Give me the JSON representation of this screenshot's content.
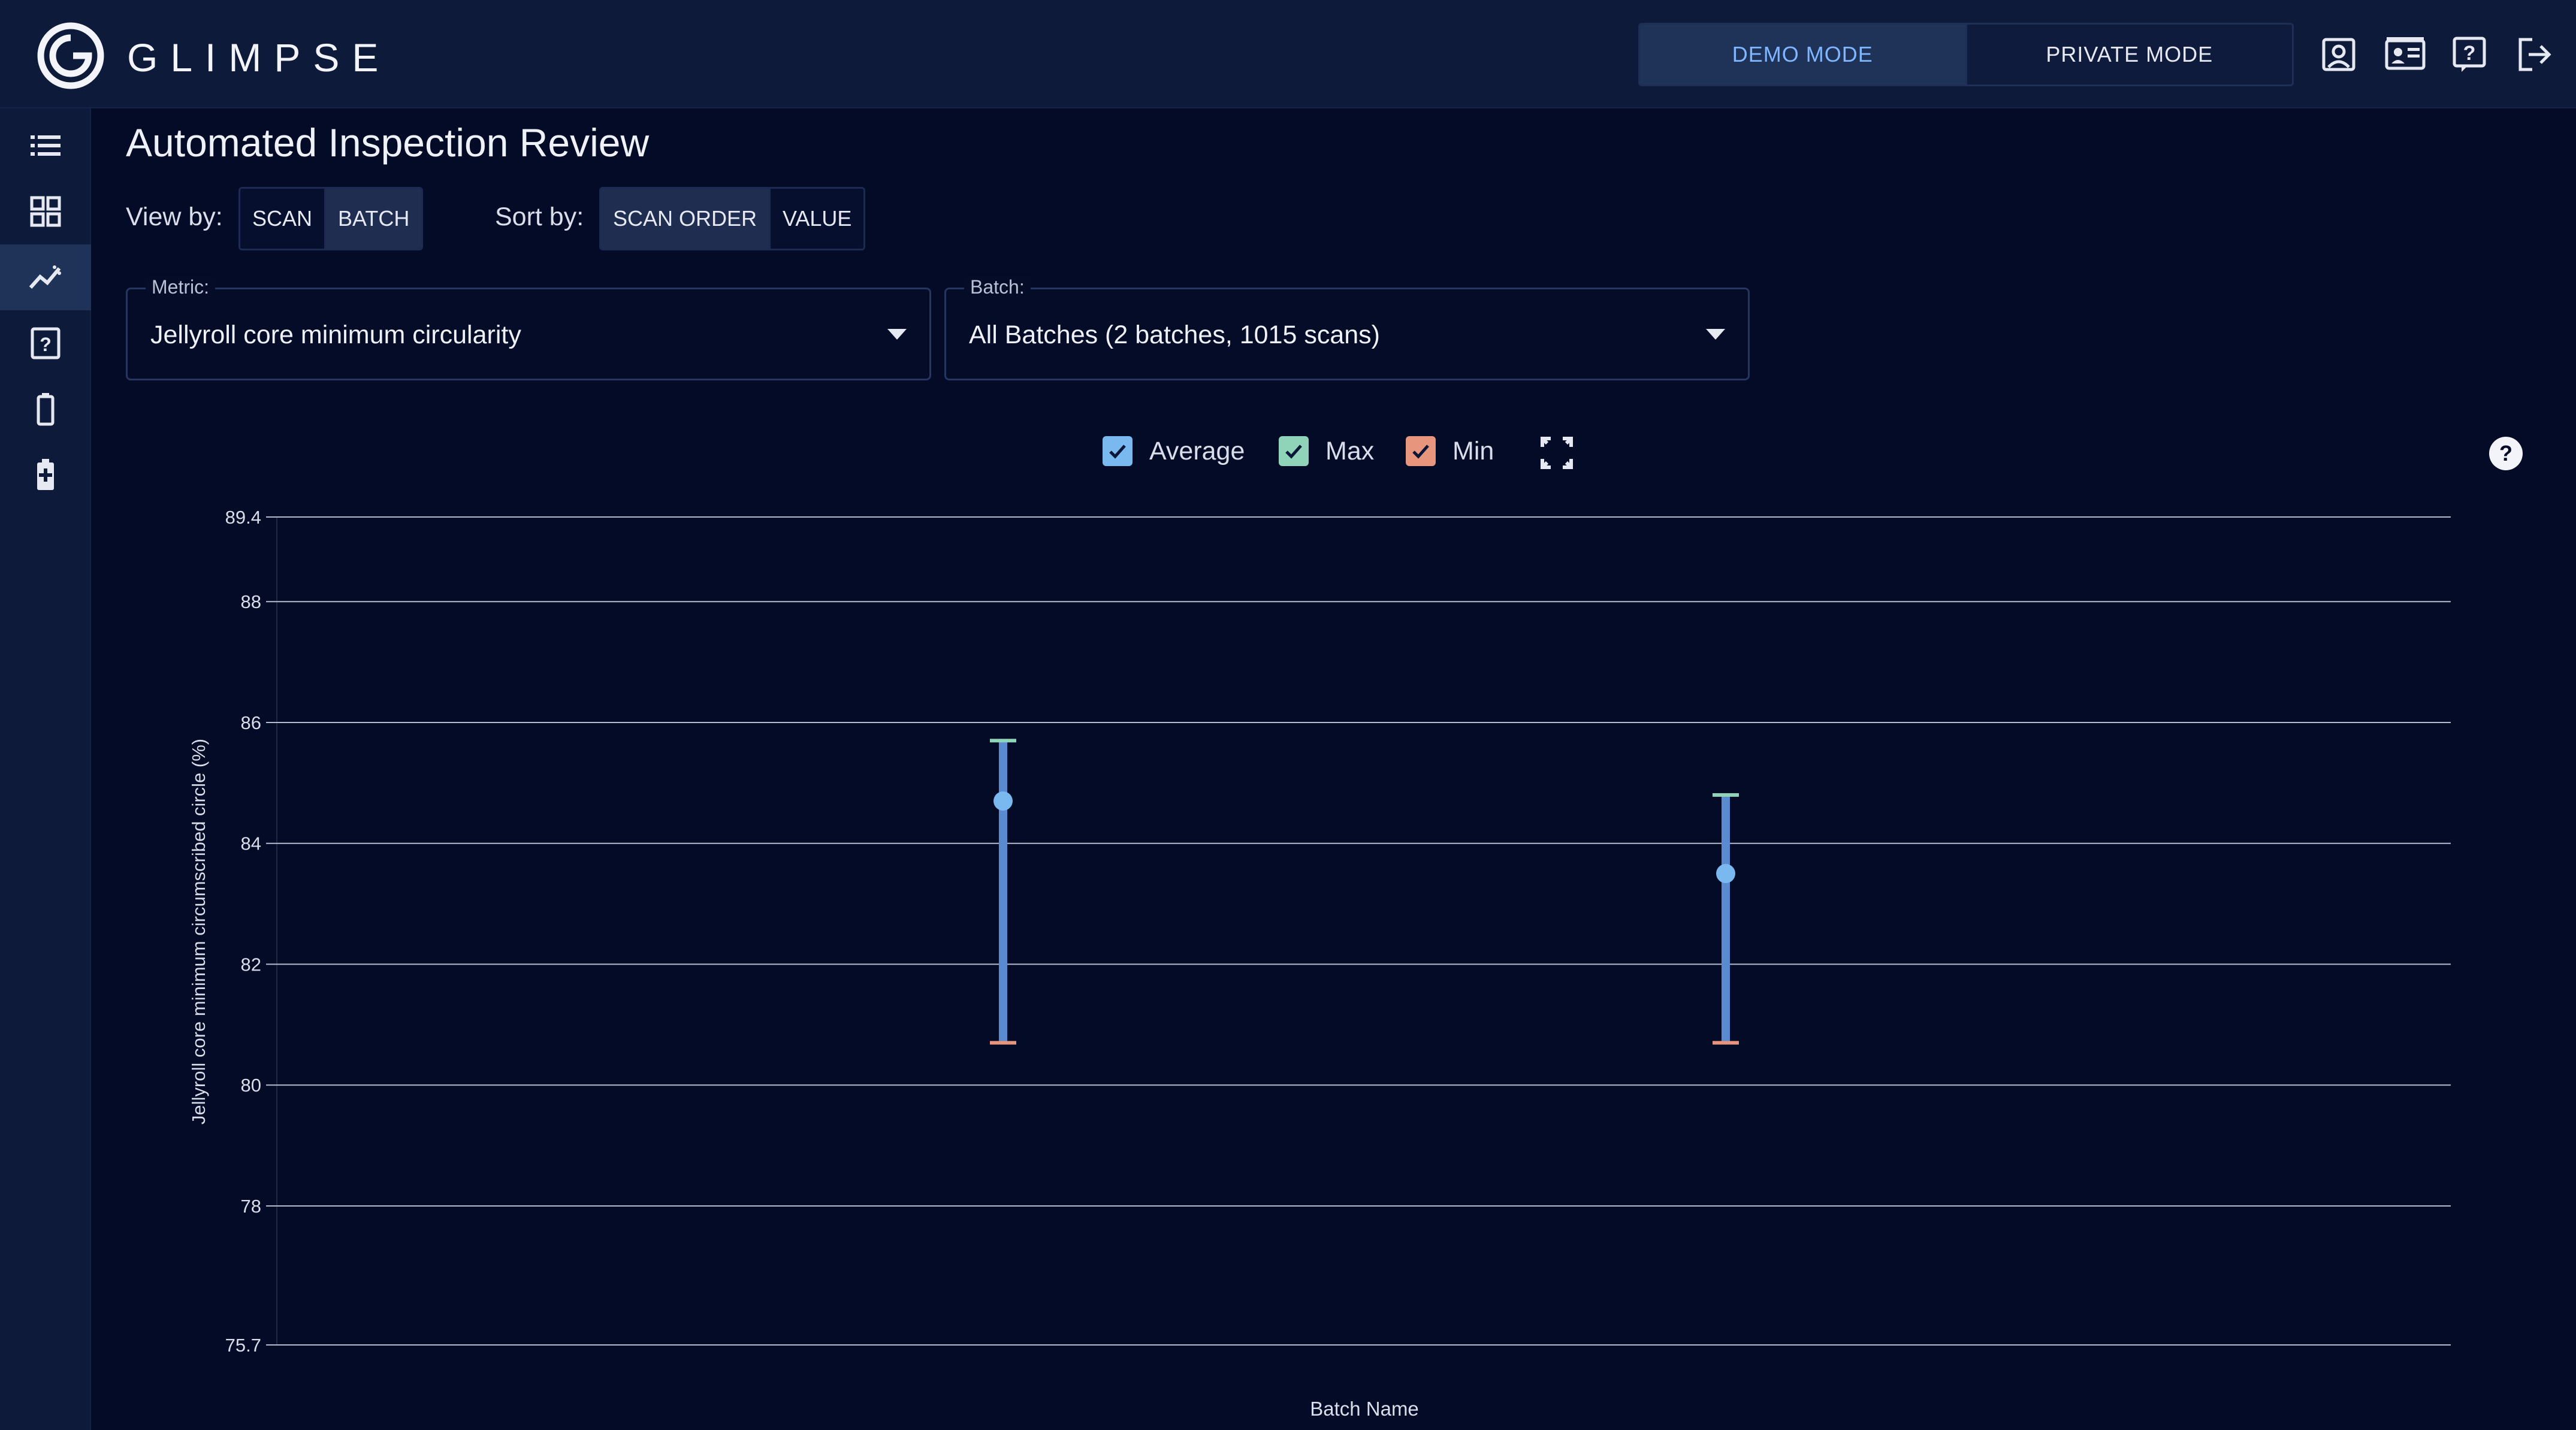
{
  "app": {
    "brand": "GLIMPSE",
    "modes": [
      {
        "label": "DEMO MODE",
        "active": true
      },
      {
        "label": "PRIVATE MODE",
        "active": false
      }
    ],
    "header_icons": [
      "user-icon",
      "id-card-icon",
      "help-icon",
      "logout-icon"
    ]
  },
  "sidebar": {
    "items": [
      {
        "icon": "list-icon",
        "active": false
      },
      {
        "icon": "grid-icon",
        "active": false
      },
      {
        "icon": "trend-chart-icon",
        "active": true
      },
      {
        "icon": "question-box-icon",
        "active": false
      },
      {
        "icon": "battery-icon",
        "active": false
      },
      {
        "icon": "battery-charge-icon",
        "active": false
      }
    ]
  },
  "page": {
    "title": "Automated Inspection Review",
    "view_by": {
      "label": "View by:",
      "options": [
        {
          "label": "SCAN",
          "active": false
        },
        {
          "label": "BATCH",
          "active": true
        }
      ]
    },
    "sort_by": {
      "label": "Sort by:",
      "options": [
        {
          "label": "SCAN ORDER",
          "active": true
        },
        {
          "label": "VALUE",
          "active": false
        }
      ]
    },
    "metric": {
      "label": "Metric:",
      "value": "Jellyroll core minimum circularity"
    },
    "batch": {
      "label": "Batch:",
      "value": "All Batches (2 batches, 1015 scans)"
    }
  },
  "legend": {
    "items": [
      {
        "label": "Average",
        "checked": true,
        "color": "#7ab8f0"
      },
      {
        "label": "Max",
        "checked": true,
        "color": "#8fd3b8"
      },
      {
        "label": "Min",
        "checked": true,
        "color": "#e8957d"
      }
    ]
  },
  "chart_data": {
    "type": "scatter",
    "xlabel": "Batch Name",
    "ylabel": "Jellyroll core minimum circumscribed circle (%)",
    "ylim": [
      75.7,
      89.4
    ],
    "yticks": [
      89.4,
      88,
      86,
      84,
      82,
      80,
      78,
      75.7
    ],
    "grid": true,
    "categories": [
      "",
      ""
    ],
    "series": [
      {
        "name": "Average",
        "values": [
          84.7,
          83.5
        ],
        "color": "#7ab8f0"
      },
      {
        "name": "Max",
        "values": [
          85.7,
          84.8
        ],
        "color": "#8fd3b8"
      },
      {
        "name": "Min",
        "values": [
          80.7,
          80.7
        ],
        "color": "#e8957d"
      }
    ]
  }
}
